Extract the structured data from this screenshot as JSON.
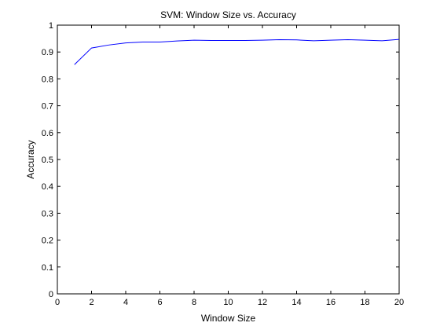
{
  "chart_data": {
    "type": "line",
    "title": "SVM: Window Size vs. Accuracy",
    "xlabel": "Window Size",
    "ylabel": "Accuracy",
    "xlim": [
      0,
      20
    ],
    "ylim": [
      0,
      1
    ],
    "x_ticks": [
      0,
      2,
      4,
      6,
      8,
      10,
      12,
      14,
      16,
      18,
      20
    ],
    "y_ticks": [
      0,
      0.1,
      0.2,
      0.3,
      0.4,
      0.5,
      0.6,
      0.7,
      0.8,
      0.9,
      1
    ],
    "grid": false,
    "legend": "none",
    "series": [
      {
        "color": "#0000ff",
        "x": [
          1,
          2,
          3,
          4,
          5,
          6,
          7,
          8,
          9,
          10,
          11,
          12,
          13,
          14,
          15,
          16,
          17,
          18,
          19,
          20
        ],
        "y": [
          0.853,
          0.915,
          0.926,
          0.934,
          0.937,
          0.937,
          0.941,
          0.944,
          0.943,
          0.943,
          0.943,
          0.944,
          0.946,
          0.945,
          0.942,
          0.944,
          0.946,
          0.944,
          0.942,
          0.947
        ]
      }
    ]
  }
}
